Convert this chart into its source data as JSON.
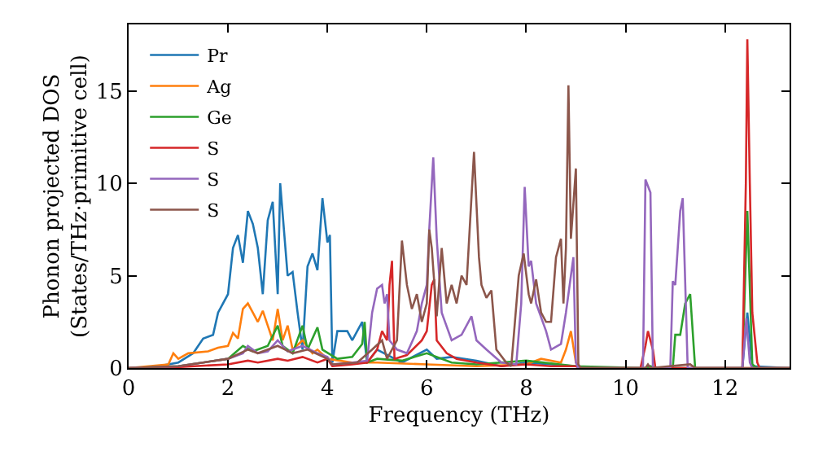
{
  "chart_data": {
    "type": "line",
    "xlabel": "Frequency (THz)",
    "ylabel": "Phonon projected DOS\n(States/THz·primitive cell)",
    "xlim": [
      0,
      13.3
    ],
    "ylim": [
      0,
      18.6
    ],
    "xticks": [
      0,
      2,
      4,
      6,
      8,
      10,
      12
    ],
    "yticks": [
      0,
      5,
      10,
      15
    ],
    "grid": false,
    "legend": "top left",
    "marker": "none",
    "line_style": "solid",
    "series": [
      {
        "name": "Pr",
        "color": "#1f77b4",
        "x": [
          0,
          0.5,
          1.0,
          1.3,
          1.5,
          1.7,
          1.8,
          2.0,
          2.1,
          2.2,
          2.3,
          2.4,
          2.5,
          2.6,
          2.7,
          2.8,
          2.9,
          3.0,
          3.05,
          3.2,
          3.3,
          3.4,
          3.5,
          3.6,
          3.7,
          3.8,
          3.9,
          4.0,
          4.05,
          4.1,
          4.2,
          4.4,
          4.5,
          4.7,
          4.8,
          5.0,
          5.5,
          6.0,
          6.2,
          6.5,
          7.0,
          7.5,
          8.0,
          8.5,
          9.0,
          9.1,
          12.35,
          12.45,
          12.55,
          13.3
        ],
        "values": [
          0,
          0.05,
          0.3,
          0.8,
          1.6,
          1.8,
          3,
          4,
          6.5,
          7.2,
          5.7,
          8.5,
          7.8,
          6.5,
          4,
          8,
          9,
          4,
          10,
          5,
          5.2,
          3,
          1,
          5.5,
          6.2,
          5.3,
          9.2,
          6.8,
          7.2,
          0.3,
          2,
          2,
          1.5,
          2.5,
          0.3,
          1,
          0.3,
          1,
          0.5,
          0.6,
          0.4,
          0.1,
          0.3,
          0.2,
          0.1,
          0,
          0,
          3,
          0.1,
          0
        ]
      },
      {
        "name": "Ag",
        "color": "#ff7f0e",
        "x": [
          0,
          0.8,
          0.9,
          1.0,
          1.2,
          1.6,
          1.8,
          2.0,
          2.1,
          2.2,
          2.3,
          2.4,
          2.5,
          2.6,
          2.7,
          2.8,
          2.9,
          3.0,
          3.1,
          3.2,
          3.3,
          3.5,
          3.7,
          3.8,
          4.0,
          4.5,
          5.0,
          6.0,
          7.0,
          8.0,
          8.3,
          8.7,
          8.8,
          8.9,
          9.0,
          9.1,
          13.3
        ],
        "values": [
          0,
          0.2,
          0.8,
          0.5,
          0.8,
          0.9,
          1.1,
          1.2,
          1.9,
          1.6,
          3.2,
          3.5,
          3,
          2.5,
          3.1,
          2.3,
          1.5,
          3.2,
          1.5,
          2.3,
          1,
          1.5,
          0.8,
          1,
          0.5,
          0.3,
          0.3,
          0.2,
          0.1,
          0.2,
          0.5,
          0.3,
          1.0,
          2,
          0.3,
          0,
          0
        ]
      },
      {
        "name": "Ge",
        "color": "#2ca02c",
        "x": [
          0,
          1,
          2,
          2.3,
          2.5,
          2.8,
          3.0,
          3.1,
          3.3,
          3.5,
          3.6,
          3.8,
          3.9,
          4.2,
          4.5,
          4.7,
          4.75,
          4.8,
          5.0,
          5.5,
          6.0,
          6.5,
          7.0,
          8.0,
          9.0,
          10.4,
          10.5,
          10.6,
          10.95,
          11.0,
          11.1,
          11.2,
          11.3,
          11.4,
          12.35,
          12.45,
          12.55,
          12.65,
          13.3
        ],
        "values": [
          0,
          0.1,
          0.5,
          1.2,
          0.9,
          1.2,
          2.3,
          1.2,
          0.8,
          2.3,
          1,
          2.2,
          1,
          0.5,
          0.6,
          1.3,
          2.5,
          0.3,
          0.5,
          0.4,
          0.8,
          0.3,
          0.2,
          0.4,
          0.1,
          0,
          0.1,
          0,
          0,
          1.8,
          1.8,
          3.5,
          4.0,
          0,
          0,
          8.5,
          0.2,
          0,
          0
        ]
      },
      {
        "name": "S",
        "color": "#d62728",
        "x": [
          0,
          1,
          2,
          2.4,
          2.6,
          3.0,
          3.2,
          3.5,
          3.8,
          4.0,
          4.1,
          4.5,
          4.8,
          5.0,
          5.1,
          5.2,
          5.25,
          5.3,
          5.35,
          5.6,
          5.9,
          6.0,
          6.1,
          6.15,
          6.2,
          6.4,
          6.6,
          7.0,
          7.5,
          8.0,
          8.5,
          9.0,
          9.1,
          10.3,
          10.4,
          10.45,
          10.55,
          10.6,
          12.35,
          12.42,
          12.45,
          12.5,
          12.55,
          12.65,
          12.7,
          13.3
        ],
        "values": [
          0,
          0.05,
          0.2,
          0.4,
          0.3,
          0.5,
          0.4,
          0.6,
          0.3,
          0.5,
          0.1,
          0.2,
          0.3,
          1.0,
          2.0,
          1.5,
          4.5,
          5.8,
          0.5,
          0.7,
          1.5,
          2.0,
          4.5,
          4.8,
          1.5,
          0.8,
          0.5,
          0.3,
          0.1,
          0.2,
          0.1,
          0.1,
          0,
          0,
          1.2,
          2.0,
          1.0,
          0,
          0,
          10,
          17.8,
          10,
          3,
          0.3,
          0,
          0
        ]
      },
      {
        "name": "S",
        "color": "#9467bd",
        "x": [
          0,
          1,
          2,
          2.3,
          2.4,
          2.6,
          2.8,
          3.0,
          3.2,
          3.5,
          3.8,
          4.0,
          4.1,
          4.5,
          4.8,
          4.9,
          5.0,
          5.1,
          5.15,
          5.2,
          5.25,
          5.4,
          5.6,
          5.8,
          5.9,
          6.0,
          6.05,
          6.13,
          6.2,
          6.3,
          6.5,
          6.7,
          6.9,
          7.0,
          7.2,
          7.5,
          7.8,
          7.9,
          7.97,
          8.05,
          8.1,
          8.2,
          8.4,
          8.5,
          8.7,
          8.8,
          8.95,
          9.0,
          9.05,
          10.35,
          10.4,
          10.5,
          10.55,
          10.9,
          10.95,
          11.0,
          11.1,
          11.15,
          11.25,
          12.35,
          12.43,
          12.5,
          12.55,
          13.3
        ],
        "values": [
          0,
          0.1,
          0.5,
          0.8,
          1.2,
          0.8,
          0.9,
          1.5,
          0.9,
          1.2,
          0.8,
          0.6,
          0.2,
          0.3,
          0.4,
          3.0,
          4.3,
          4.5,
          3.5,
          4.0,
          1.5,
          1.0,
          0.8,
          2.0,
          3.5,
          4.5,
          7.5,
          11.4,
          7.0,
          3.0,
          1.5,
          1.8,
          2.8,
          1.5,
          1.0,
          0.3,
          0.2,
          3.5,
          9.8,
          5.5,
          5.8,
          3.5,
          2.0,
          1.0,
          1.3,
          3.0,
          6.0,
          0.3,
          0,
          0,
          10.2,
          9.5,
          0,
          0,
          4.7,
          4.5,
          8.5,
          9.2,
          0,
          0,
          2.7,
          0.3,
          0,
          0
        ]
      },
      {
        "name": "S",
        "color": "#8c564b",
        "x": [
          0,
          1,
          2,
          2.4,
          2.6,
          3.0,
          3.3,
          3.6,
          4.0,
          4.1,
          4.6,
          4.9,
          5.1,
          5.2,
          5.4,
          5.5,
          5.6,
          5.7,
          5.8,
          5.9,
          6.0,
          6.05,
          6.1,
          6.2,
          6.3,
          6.4,
          6.5,
          6.6,
          6.7,
          6.8,
          6.95,
          7.05,
          7.1,
          7.2,
          7.3,
          7.4,
          7.6,
          7.7,
          7.85,
          7.95,
          8.05,
          8.1,
          8.2,
          8.3,
          8.4,
          8.5,
          8.6,
          8.7,
          8.75,
          8.8,
          8.85,
          8.9,
          9.0,
          9.05,
          9.1,
          10.4,
          10.45,
          10.5,
          11.3,
          11.4,
          13.3
        ],
        "values": [
          0,
          0.1,
          0.5,
          1.0,
          0.8,
          1.2,
          0.8,
          1.0,
          0.5,
          0.2,
          0.3,
          1.0,
          1.5,
          0.5,
          1.5,
          6.9,
          4.5,
          3.2,
          4.0,
          2.5,
          3.5,
          7.5,
          6.5,
          2.8,
          6.5,
          3.5,
          4.5,
          3.5,
          5.0,
          4.5,
          11.7,
          6.0,
          4.5,
          3.8,
          4.2,
          1.0,
          0.3,
          0.1,
          5.0,
          6.2,
          4.0,
          3.5,
          4.8,
          3.0,
          2.5,
          2.5,
          6.0,
          7.0,
          3.5,
          6.5,
          15.3,
          7.0,
          10.8,
          0.2,
          0,
          0,
          0.2,
          0,
          0.2,
          0,
          0
        ]
      }
    ]
  }
}
